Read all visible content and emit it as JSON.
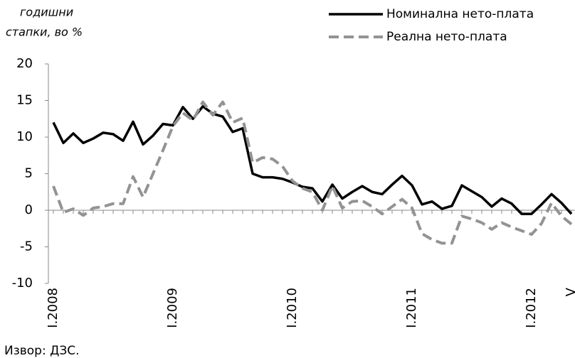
{
  "chart_data": {
    "type": "line",
    "y_axis_label": [
      "годишни",
      "стапки, во %"
    ],
    "categories": [
      "I.2008",
      null,
      null,
      null,
      null,
      null,
      null,
      null,
      null,
      null,
      null,
      null,
      "I.2009",
      null,
      null,
      null,
      null,
      null,
      null,
      null,
      null,
      null,
      null,
      null,
      "I.2010",
      null,
      null,
      null,
      null,
      null,
      null,
      null,
      null,
      null,
      null,
      null,
      "I.2011",
      null,
      null,
      null,
      null,
      null,
      null,
      null,
      null,
      null,
      null,
      null,
      "I.2012",
      null,
      null,
      null,
      "V"
    ],
    "series": [
      {
        "name": "Номинална нето-плата",
        "color": "#000000",
        "dash": false,
        "values": [
          12.0,
          9.2,
          10.5,
          9.2,
          9.8,
          10.6,
          10.4,
          9.5,
          12.1,
          9.0,
          10.2,
          11.8,
          11.6,
          14.1,
          12.5,
          14.2,
          13.2,
          12.8,
          10.7,
          11.2,
          5.0,
          4.5,
          4.5,
          4.3,
          3.8,
          3.2,
          3.0,
          1.2,
          3.5,
          1.6,
          2.5,
          3.3,
          2.5,
          2.2,
          3.5,
          4.7,
          3.4,
          0.8,
          1.2,
          0.2,
          0.6,
          3.4,
          2.6,
          1.8,
          0.5,
          1.6,
          0.9,
          -0.5,
          -0.5,
          0.8,
          2.2,
          1.0,
          -0.5
        ]
      },
      {
        "name": "Реална нето-плата",
        "color": "#939393",
        "dash": true,
        "values": [
          3.3,
          -0.3,
          0.2,
          -0.7,
          0.3,
          0.5,
          0.9,
          0.9,
          4.6,
          1.8,
          5.0,
          8.2,
          11.5,
          13.3,
          12.3,
          14.8,
          13.0,
          14.8,
          12.0,
          12.6,
          6.5,
          7.2,
          7.0,
          6.0,
          4.0,
          3.0,
          2.5,
          0.0,
          3.3,
          0.3,
          1.2,
          1.3,
          0.5,
          -0.5,
          0.5,
          1.5,
          0.3,
          -3.2,
          -4.0,
          -4.5,
          -4.5,
          -0.8,
          -1.2,
          -1.7,
          -2.6,
          -1.7,
          -2.3,
          -2.8,
          -3.3,
          -1.8,
          1.0,
          -0.8,
          -1.9
        ]
      }
    ],
    "ylim": [
      -10,
      20
    ],
    "yticks": [
      -10,
      -5,
      0,
      5,
      10,
      15,
      20
    ],
    "grid": false,
    "legend": "top-right",
    "source": "Извор: ДЗС."
  }
}
